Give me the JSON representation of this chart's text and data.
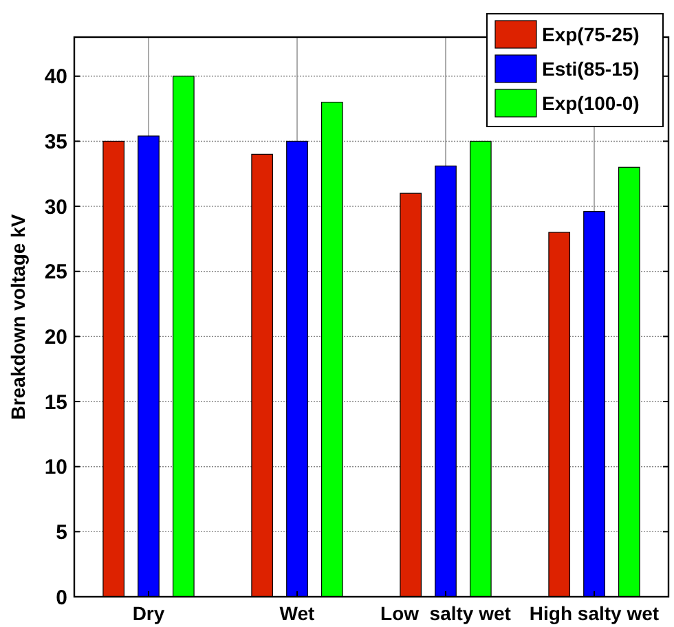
{
  "chart_data": {
    "type": "bar",
    "ylabel": "Breakdown voltage kV",
    "categories": [
      "Dry",
      "Wet",
      "Low  salty wet",
      "High salty wet"
    ],
    "series": [
      {
        "name": "Exp(75-25)",
        "color": "#dd2200",
        "values": [
          35,
          34,
          31,
          28
        ]
      },
      {
        "name": "Esti(85-15)",
        "color": "#0000ff",
        "values": [
          35.4,
          35,
          33.1,
          29.6
        ]
      },
      {
        "name": "Exp(100-0)",
        "color": "#00ff00",
        "values": [
          40,
          38,
          35,
          33
        ]
      }
    ],
    "ylim": [
      0,
      43
    ],
    "yticks": [
      0,
      5,
      10,
      15,
      20,
      25,
      30,
      35,
      40
    ],
    "grid": true,
    "legend": "top right"
  }
}
